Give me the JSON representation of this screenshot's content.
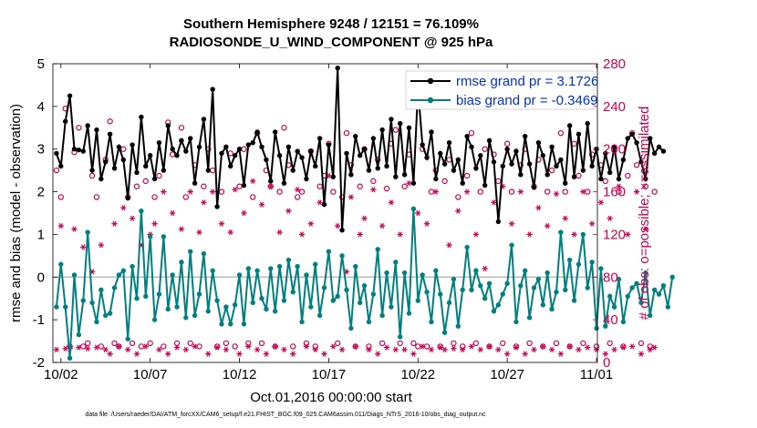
{
  "figure": {
    "title_line1": "Southern Hemisphere 9248 / 12151 = 76.109%",
    "title_line2": "RADIOSONDE_U_WIND_COMPONENT @ 925 hPa",
    "xlabel": "Oct.01,2016 00:00:00 start",
    "ylabel_left": "rmse and bias (model - observation)",
    "ylabel_right": "# of obs: o=possible; ×=assimilated",
    "footer": "data file: /Users/raeder/DAI/ATM_forcXX/CAM6_setup/f.e21.FHIST_BGC.f09_025.CAM6assim.011/Diags_NTrS_2016-10/obs_diag_output.nc",
    "colors": {
      "rmse": "#000000",
      "bias": "#008080",
      "obs": "#cc0055",
      "legend_text": "#0033cc",
      "zero_line": "#bbbbbb"
    }
  },
  "chart_data": {
    "type": "line",
    "title": "Southern Hemisphere 9248 / 12151 = 76.109%\nRADIOSONDE_U_WIND_COMPONENT @ 925 hPa",
    "xlabel": "Oct.01,2016 00:00:00 start",
    "x_ticks": [
      "10/02",
      "10/07",
      "10/12",
      "10/17",
      "10/22",
      "10/27",
      "11/01"
    ],
    "x_tick_days": [
      1,
      6,
      11,
      16,
      21,
      26,
      31
    ],
    "xlim_days": [
      0.55,
      31.05
    ],
    "step_days": 0.25,
    "x_start_day": 0.75,
    "left_axis": {
      "label": "rmse and bias (model - observation)",
      "ylim": [
        -2,
        5
      ],
      "ticks": [
        -2,
        -1,
        0,
        1,
        2,
        3,
        4,
        5
      ]
    },
    "right_axis": {
      "label": "# of obs: o=possible; ×=assimilated",
      "ylim": [
        0,
        280
      ],
      "ticks": [
        0,
        40,
        80,
        120,
        160,
        200,
        240,
        280
      ]
    },
    "legend": {
      "position": "top-right",
      "entries": [
        "rmse grand pr = 3.1726",
        "bias grand pr = -0.3469"
      ]
    },
    "series": [
      {
        "name": "rmse grand pr = 3.1726",
        "axis": "left",
        "marker": "filled-circle",
        "values": [
          2.9,
          2.6,
          3.65,
          4.25,
          3.0,
          2.98,
          2.95,
          3.55,
          2.5,
          3.45,
          2.3,
          2.7,
          3.35,
          2.55,
          3.05,
          2.75,
          1.85,
          3.1,
          2.45,
          3.75,
          2.6,
          2.85,
          2.3,
          3.15,
          2.5,
          3.55,
          3.0,
          2.85,
          3.2,
          2.95,
          3.25,
          2.2,
          3.05,
          3.7,
          2.5,
          4.4,
          1.65,
          2.9,
          3.05,
          2.6,
          2.85,
          3.0,
          2.15,
          3.1,
          3.15,
          3.4,
          3.05,
          2.75,
          2.25,
          3.4,
          2.85,
          2.2,
          3.05,
          2.5,
          2.95,
          2.8,
          2.3,
          2.95,
          2.6,
          3.25,
          1.7,
          3.1,
          2.35,
          4.9,
          1.1,
          2.9,
          2.4,
          3.3,
          2.85,
          3.0,
          2.5,
          3.25,
          2.55,
          3.45,
          2.6,
          3.7,
          2.35,
          3.6,
          2.4,
          3.5,
          2.2,
          4.4,
          3.1,
          2.8,
          3.4,
          2.3,
          2.9,
          2.65,
          3.15,
          2.5,
          2.75,
          2.2,
          3.3,
          3.05,
          2.55,
          2.85,
          2.15,
          3.2,
          2.7,
          1.3,
          2.6,
          3.0,
          2.65,
          2.95,
          2.4,
          3.3,
          2.65,
          2.1,
          3.15,
          2.85,
          2.4,
          3.05,
          2.6,
          2.75,
          2.2,
          3.55,
          2.35,
          3.35,
          2.5,
          3.6,
          2.6,
          3.0,
          2.3,
          2.9,
          2.45,
          3.05,
          2.3,
          2.75,
          3.25,
          3.35,
          3.15,
          2.7,
          2.3,
          3.25,
          2.9,
          3.05,
          2.95
        ]
      },
      {
        "name": "bias grand pr = -0.3469",
        "axis": "left",
        "marker": "filled-circle",
        "values": [
          -0.7,
          0.3,
          -0.7,
          -1.9,
          0.05,
          -1.35,
          -0.55,
          1.05,
          -0.6,
          -1.05,
          -0.3,
          -0.9,
          -0.85,
          -0.25,
          0.05,
          0.15,
          -1.45,
          0.25,
          -0.5,
          1.55,
          -0.45,
          0.95,
          -1.0,
          -0.4,
          0.95,
          -0.75,
          0.05,
          -0.7,
          0.35,
          -0.95,
          0.6,
          -0.9,
          -0.4,
          0.55,
          -0.8,
          0.15,
          -0.55,
          -1.1,
          -0.7,
          -1.1,
          -0.65,
          0.05,
          -1.1,
          0.2,
          -0.6,
          0.15,
          -0.5,
          -0.75,
          0.2,
          -0.8,
          0.25,
          -0.55,
          0.4,
          -0.35,
          0.25,
          -1.05,
          0.05,
          -0.7,
          0.3,
          -0.9,
          -0.25,
          0.6,
          -0.55,
          -0.45,
          0.5,
          -0.3,
          -1.2,
          0.25,
          -0.6,
          -0.2,
          -1.05,
          -0.4,
          0.65,
          -0.9,
          0.1,
          -0.7,
          0.35,
          -1.4,
          0.1,
          -0.85,
          1.6,
          -0.55,
          0.05,
          -0.35,
          -1.05,
          0.15,
          -0.4,
          -1.3,
          -0.6,
          -0.05,
          -1.15,
          -0.3,
          0.7,
          -0.3,
          0.15,
          -0.2,
          -0.5,
          -0.15,
          -0.8,
          -0.65,
          -0.4,
          -0.15,
          0.75,
          -1.05,
          -0.2,
          0.15,
          -0.95,
          -0.25,
          -0.05,
          -0.65,
          0.1,
          -0.75,
          -0.35,
          1.05,
          -0.3,
          0.4,
          -0.55,
          0.3,
          1.0,
          -0.25,
          0.35,
          -1.2,
          0.2,
          -1.15,
          -0.45,
          -0.7,
          -0.05,
          -1.05,
          -0.45,
          -0.25,
          -0.15,
          -0.6,
          0.1,
          -0.9,
          -0.3,
          -0.4,
          -0.2,
          -0.7,
          0.0
        ]
      },
      {
        "name": "possible",
        "axis": "right",
        "marker": "open-circle",
        "values": [
          180,
          155,
          238,
          15,
          197,
          220,
          15,
          18,
          175,
          155,
          15,
          190,
          226,
          18,
          15,
          200,
          155,
          18,
          165,
          15,
          170,
          18,
          155,
          175,
          15,
          225,
          195,
          18,
          220,
          155,
          18,
          185,
          15,
          165,
          200,
          180,
          15,
          160,
          18,
          196,
          15,
          165,
          200,
          18,
          155,
          215,
          18,
          180,
          165,
          15,
          160,
          220,
          185,
          15,
          155,
          160,
          18,
          198,
          15,
          165,
          175,
          205,
          160,
          18,
          155,
          215,
          185,
          15,
          165,
          200,
          15,
          170,
          190,
          18,
          163,
          205,
          218,
          18,
          165,
          195,
          18,
          15,
          200,
          15,
          160,
          180,
          15,
          170,
          190,
          18,
          155,
          15,
          175,
          215,
          18,
          160,
          200,
          15,
          195,
          170,
          18,
          205,
          160,
          15,
          185,
          200,
          18,
          165,
          190,
          15,
          160,
          180,
          18,
          215,
          160,
          15,
          205,
          175,
          18,
          160,
          195,
          15,
          185,
          170,
          18,
          200,
          160,
          15,
          175,
          215,
          185,
          18,
          165,
          15,
          160
        ]
      },
      {
        "name": "assimilated",
        "axis": "right",
        "marker": "asterisk",
        "values": [
          12,
          128,
          13,
          13,
          125,
          14,
          108,
          13,
          85,
          14,
          110,
          12,
          8,
          130,
          15,
          145,
          12,
          135,
          8,
          110,
          15,
          120,
          130,
          12,
          160,
          8,
          140,
          14,
          125,
          12,
          160,
          15,
          122,
          150,
          8,
          160,
          14,
          130,
          12,
          122,
          162,
          8,
          140,
          15,
          170,
          12,
          148,
          8,
          165,
          15,
          122,
          12,
          142,
          8,
          162,
          120,
          15,
          130,
          12,
          150,
          8,
          175,
          15,
          128,
          12,
          85,
          155,
          15,
          120,
          135,
          12,
          162,
          8,
          128,
          14,
          150,
          12,
          120,
          12,
          168,
          8,
          140,
          15,
          130,
          12,
          160,
          14,
          12,
          110,
          13,
          142,
          12,
          160,
          15,
          120,
          12,
          88,
          15,
          150,
          12,
          165,
          8,
          130,
          14,
          160,
          8,
          120,
          12,
          145,
          15,
          128,
          12,
          158,
          8,
          135,
          15,
          120,
          12,
          160,
          14,
          130,
          12,
          150,
          8,
          135,
          12,
          165,
          14,
          120,
          15,
          160,
          8,
          125,
          12,
          14
        ]
      }
    ]
  }
}
